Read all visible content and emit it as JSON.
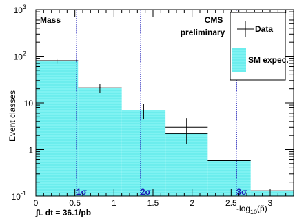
{
  "chart_data": {
    "type": "bar",
    "bins": [
      {
        "x0": 0.0,
        "x1": 0.54,
        "sm": 80,
        "data": 80,
        "data_err": 9,
        "data_xerr": 0.27
      },
      {
        "x0": 0.54,
        "x1": 1.1,
        "sm": 21,
        "data": 21,
        "data_err": 4.6,
        "data_xerr": 0.0
      },
      {
        "x0": 1.1,
        "x1": 1.66,
        "sm": 7,
        "data": 7,
        "data_err": 2.6,
        "data_xerr": 0.0
      },
      {
        "x0": 1.66,
        "x1": 2.2,
        "sm": 2.2,
        "data": 3,
        "data_err": 1.7,
        "data_xerr": 0.27
      },
      {
        "x0": 2.2,
        "x1": 2.75,
        "sm": 0.58,
        "data": null
      },
      {
        "x0": 2.75,
        "x1": 3.3,
        "sm": 0.13,
        "data": null
      }
    ],
    "sigma_lines": [
      {
        "x": 0.52,
        "label": "1σ"
      },
      {
        "x": 1.34,
        "label": "2σ"
      },
      {
        "x": 2.57,
        "label": "3σ"
      }
    ],
    "xlim": [
      0,
      3.3
    ],
    "ylim": [
      0.1,
      1000
    ],
    "ylog": true,
    "xticks": [
      "0",
      "0.5",
      "1",
      "1.5",
      "2",
      "2.5",
      "3"
    ],
    "xtick_values": [
      0,
      0.5,
      1,
      1.5,
      2,
      2.5,
      3
    ],
    "ylabel": "Event classes",
    "xlabel_main": "-log",
    "xlabel_sub": "10",
    "xlabel_tail": "(p̃)",
    "title_left": "Mass",
    "cms_line1": "CMS",
    "cms_line2": "preliminary",
    "lumi": "∫L dt = 36.1/pb",
    "legend": [
      {
        "label": "Data",
        "kind": "marker"
      },
      {
        "label": "SM expec.",
        "kind": "fill"
      }
    ],
    "colors": {
      "fill": "#7ff2f2",
      "hatch": "#46e6e6",
      "sigma": "#1c1cb8",
      "edge": "#000000"
    }
  }
}
